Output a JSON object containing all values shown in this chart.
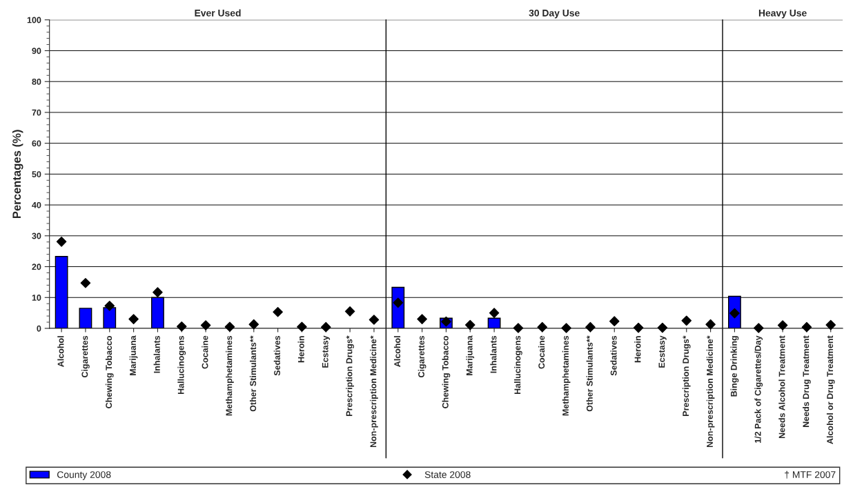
{
  "chart_data": {
    "type": "bar",
    "ylabel": "Percentages (%)",
    "categories": [
      "Alcohol",
      "Cigarettes",
      "Chewing Tobacco",
      "Marijuana",
      "Inhalants",
      "Hallucinogens",
      "Cocaine",
      "Methamphetamines",
      "Other Stimulants**",
      "Sedatives",
      "Heroin",
      "Ecstasy",
      "Prescription Drugs*",
      "Non-prescription Medicine*",
      "Alcohol",
      "Cigarettes",
      "Chewing Tobacco",
      "Marijuana",
      "Inhalants",
      "Hallucinogens",
      "Cocaine",
      "Methamphetamines",
      "Other Stimulants**",
      "Sedatives",
      "Heroin",
      "Ecstasy",
      "Prescription Drugs*",
      "Non-prescription Medicine*",
      "Binge Drinking",
      "1/2 Pack of Cigarettes/Day",
      "Needs Alcohol Treatment",
      "Needs Drug Treatment",
      "Alcohol or Drug Treatment"
    ],
    "series": [
      {
        "name": "County 2008",
        "color": "#0000ff",
        "values": [
          23.3,
          6.5,
          6.7,
          null,
          10.0,
          null,
          null,
          null,
          null,
          null,
          null,
          null,
          null,
          null,
          13.3,
          null,
          3.3,
          null,
          3.3,
          null,
          null,
          null,
          null,
          null,
          null,
          null,
          null,
          null,
          10.4,
          null,
          null,
          null,
          null
        ]
      },
      {
        "name": "State 2008",
        "type": "scatter",
        "color": "#000000",
        "marker": "diamond",
        "values": [
          28.1,
          14.7,
          7.3,
          3.0,
          11.7,
          0.6,
          1.0,
          0.5,
          1.3,
          5.3,
          0.5,
          0.4,
          5.5,
          2.8,
          8.3,
          3.0,
          2.2,
          1.1,
          5.0,
          0.1,
          0.4,
          0.1,
          0.4,
          2.3,
          0.2,
          0.2,
          2.5,
          1.3,
          4.9,
          0.1,
          1.0,
          0.4,
          1.1
        ]
      },
      {
        "name": "† MTF 2007",
        "type": "scatter",
        "color": "#000000",
        "marker": "none",
        "values": [
          null,
          null,
          null,
          null,
          null,
          null,
          null,
          null,
          null,
          null,
          null,
          null,
          null,
          null,
          null,
          null,
          null,
          null,
          null,
          null,
          null,
          null,
          null,
          null,
          null,
          null,
          null,
          null,
          null,
          null,
          null,
          null,
          null
        ]
      }
    ],
    "ylim": [
      0,
      100
    ],
    "yticks": [
      0,
      10,
      20,
      30,
      40,
      50,
      60,
      70,
      80,
      90,
      100
    ],
    "grid": "y",
    "legend": "bottom",
    "annotations": [
      "Ever Used",
      "30 Day Use",
      "Heavy Use"
    ]
  }
}
